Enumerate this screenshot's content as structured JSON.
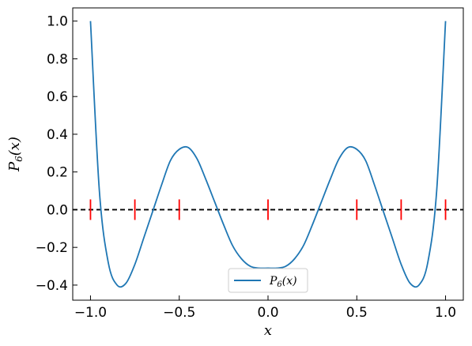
{
  "chart_data": {
    "type": "line",
    "title": "",
    "xlabel": "x",
    "ylabel": "P6(x)",
    "xlim": [
      -1.1,
      1.1
    ],
    "ylim": [
      -0.48,
      1.07
    ],
    "x_ticks": [
      -1.0,
      -0.5,
      0.0,
      0.5,
      1.0
    ],
    "x_tick_labels": [
      "−1.0",
      "−0.5",
      "0.0",
      "0.5",
      "1.0"
    ],
    "y_ticks": [
      -0.4,
      -0.2,
      0.0,
      0.2,
      0.4,
      0.6,
      0.8,
      1.0
    ],
    "y_tick_labels": [
      "−0.4",
      "−0.2",
      "0.0",
      "0.2",
      "0.4",
      "0.6",
      "0.8",
      "1.0"
    ],
    "grid": false,
    "legend_position": "bottom-center",
    "series": [
      {
        "name": "P6(x)",
        "color": "#1f77b4",
        "x": [
          -1.0,
          -0.95,
          -0.9,
          -0.85,
          -0.8,
          -0.75,
          -0.7,
          -0.65,
          -0.6,
          -0.55,
          -0.5,
          -0.45,
          -0.4,
          -0.35,
          -0.3,
          -0.25,
          -0.2,
          -0.15,
          -0.1,
          -0.05,
          0.0,
          0.05,
          0.1,
          0.15,
          0.2,
          0.25,
          0.3,
          0.35,
          0.4,
          0.45,
          0.5,
          0.55,
          0.6,
          0.65,
          0.7,
          0.75,
          0.8,
          0.85,
          0.9,
          0.95,
          1.0
        ],
        "y": [
          1.0,
          0.1,
          -0.28,
          -0.4,
          -0.39,
          -0.29,
          -0.15,
          -0.01,
          0.13,
          0.26,
          0.32,
          0.33,
          0.27,
          0.16,
          0.04,
          -0.08,
          -0.19,
          -0.26,
          -0.3,
          -0.31,
          -0.31,
          -0.31,
          -0.3,
          -0.26,
          -0.19,
          -0.08,
          0.04,
          0.16,
          0.27,
          0.33,
          0.32,
          0.26,
          0.13,
          -0.01,
          -0.15,
          -0.29,
          -0.39,
          -0.4,
          -0.28,
          0.1,
          1.0
        ]
      }
    ],
    "reference_line": {
      "y": 0,
      "color": "#000000",
      "style": "dashed"
    },
    "markers": {
      "color": "#ff0000",
      "x": [
        -1.0,
        -0.75,
        -0.5,
        0.0,
        0.5,
        0.75,
        1.0
      ],
      "y": 0.0
    }
  }
}
